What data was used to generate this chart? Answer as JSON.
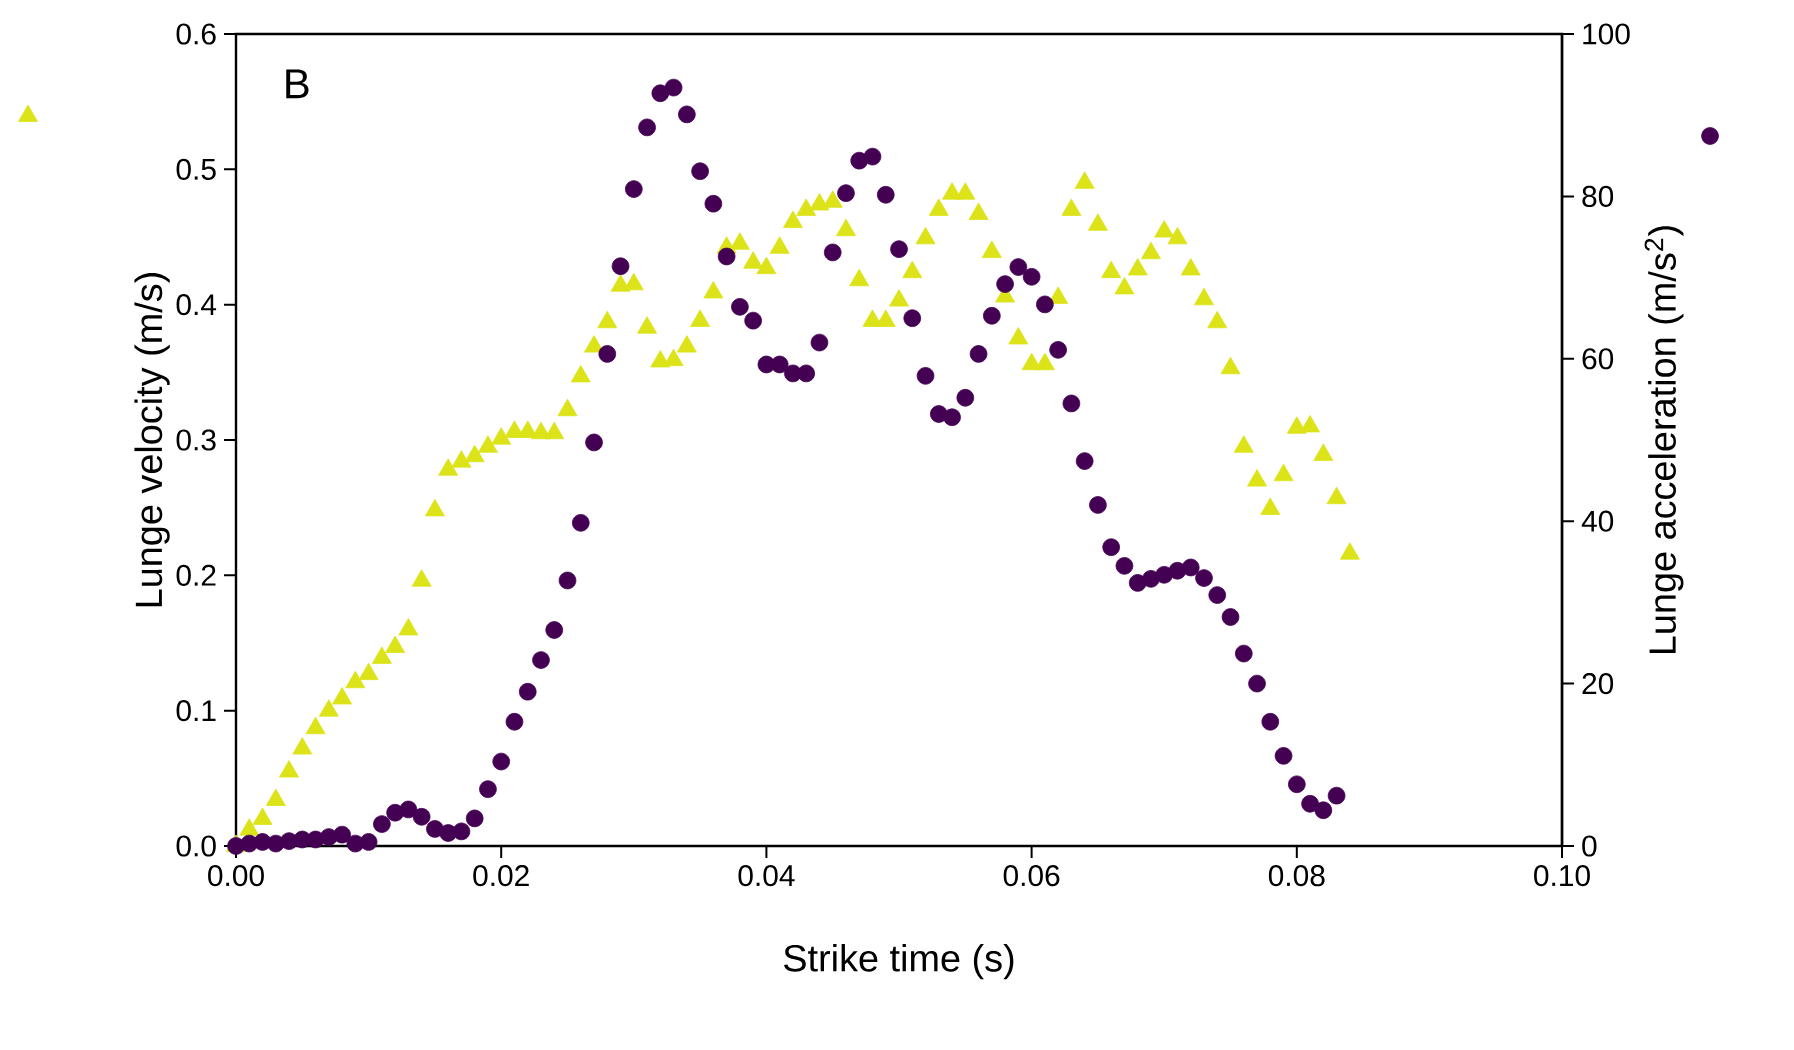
{
  "chart_data": {
    "type": "scatter",
    "xlabel": "Strike time (s)",
    "ylabel": "Lunge velocity (m/s)",
    "y2label": "Lunge acceleration (m/s$^{2}$)",
    "annotations": [
      "B"
    ],
    "xlim": [
      0,
      0.1
    ],
    "xticks": [
      {
        "value": 0,
        "label": "0.00"
      },
      {
        "value": 0.02,
        "label": "0.02"
      },
      {
        "value": 0.04,
        "label": "0.04"
      },
      {
        "value": 0.06,
        "label": "0.06"
      },
      {
        "value": 0.08,
        "label": "0.08"
      },
      {
        "value": 0.1,
        "label": "0.10"
      }
    ],
    "ylim": [
      0,
      0.6
    ],
    "yticks": [
      {
        "value": 0,
        "label": "0.0"
      },
      {
        "value": 0.1,
        "label": "0.1"
      },
      {
        "value": 0.2,
        "label": "0.2"
      },
      {
        "value": 0.3,
        "label": "0.3"
      },
      {
        "value": 0.4,
        "label": "0.4"
      },
      {
        "value": 0.5,
        "label": "0.5"
      },
      {
        "value": 0.6,
        "label": "0.6"
      }
    ],
    "y2lim": [
      0,
      100
    ],
    "y2ticks": [
      0,
      20,
      40,
      60,
      80,
      100
    ],
    "series": [
      {
        "color": "#dce319",
        "marker": "triangle",
        "x": [
          0,
          0.001,
          0.002,
          0.003,
          0.004,
          0.005,
          0.006,
          0.007,
          0.008,
          0.009,
          0.01,
          0.011,
          0.012,
          0.013,
          0.014,
          0.015,
          0.016,
          0.017,
          0.018,
          0.019,
          0.02,
          0.021,
          0.022,
          0.023,
          0.024,
          0.025,
          0.026,
          0.027,
          0.028,
          0.029,
          0.03,
          0.031,
          0.032,
          0.033,
          0.034,
          0.035,
          0.036,
          0.037,
          0.038,
          0.039,
          0.04,
          0.041,
          0.042,
          0.043,
          0.044,
          0.045,
          0.046,
          0.047,
          0.048,
          0.049,
          0.05,
          0.051,
          0.052,
          0.053,
          0.054,
          0.055,
          0.056,
          0.057,
          0.058,
          0.059,
          0.06,
          0.061,
          0.062,
          0.063,
          0.064,
          0.065,
          0.066,
          0.067,
          0.068,
          0.069,
          0.07,
          0.071,
          0.072,
          0.073,
          0.074,
          0.075,
          0.076,
          0.077,
          0.078,
          0.079,
          0.08,
          0.081,
          0.082,
          0.083,
          0.084
        ],
        "values": [
          0,
          0.012,
          0.02,
          0.034,
          0.055,
          0.072,
          0.087,
          0.1,
          0.109,
          0.121,
          0.127,
          0.139,
          0.147,
          0.16,
          0.196,
          0.248,
          0.278,
          0.284,
          0.288,
          0.295,
          0.301,
          0.306,
          0.306,
          0.305,
          0.305,
          0.322,
          0.347,
          0.369,
          0.387,
          0.414,
          0.415,
          0.383,
          0.358,
          0.359,
          0.369,
          0.388,
          0.409,
          0.442,
          0.445,
          0.431,
          0.427,
          0.442,
          0.461,
          0.47,
          0.474,
          0.476,
          0.455,
          0.418,
          0.388,
          0.388,
          0.403,
          0.424,
          0.449,
          0.47,
          0.482,
          0.482,
          0.467,
          0.439,
          0.406,
          0.375,
          0.356,
          0.356,
          0.405,
          0.47,
          0.49,
          0.459,
          0.424,
          0.412,
          0.426,
          0.438,
          0.454,
          0.449,
          0.426,
          0.404,
          0.387,
          0.353,
          0.295,
          0.27,
          0.249,
          0.274,
          0.309,
          0.31,
          0.289,
          0.257,
          0.216
        ]
      },
      {
        "color": "#440154",
        "marker": "circle",
        "axis": "y2",
        "x": [
          0,
          0.001,
          0.002,
          0.003,
          0.004,
          0.005,
          0.006,
          0.007,
          0.008,
          0.009,
          0.01,
          0.011,
          0.012,
          0.013,
          0.014,
          0.015,
          0.016,
          0.017,
          0.018,
          0.019,
          0.02,
          0.021,
          0.022,
          0.023,
          0.024,
          0.025,
          0.026,
          0.027,
          0.028,
          0.029,
          0.03,
          0.031,
          0.032,
          0.033,
          0.034,
          0.035,
          0.036,
          0.037,
          0.038,
          0.039,
          0.04,
          0.041,
          0.042,
          0.043,
          0.044,
          0.045,
          0.046,
          0.047,
          0.048,
          0.049,
          0.05,
          0.051,
          0.052,
          0.053,
          0.054,
          0.055,
          0.056,
          0.057,
          0.058,
          0.059,
          0.06,
          0.061,
          0.062,
          0.063,
          0.064,
          0.065,
          0.066,
          0.067,
          0.068,
          0.069,
          0.07,
          0.071,
          0.072,
          0.073,
          0.074,
          0.075,
          0.076,
          0.077,
          0.078,
          0.079,
          0.08,
          0.081,
          0.082,
          0.083
        ],
        "values": [
          0,
          0.3,
          0.5,
          0.3,
          0.6,
          0.8,
          0.8,
          1.1,
          1.4,
          0.3,
          0.5,
          2.7,
          4.1,
          4.5,
          3.6,
          2.1,
          1.6,
          1.8,
          3.4,
          7,
          10.4,
          15.3,
          19,
          22.9,
          26.6,
          32.7,
          39.8,
          49.7,
          60.6,
          71.4,
          80.9,
          88.5,
          92.7,
          93.4,
          90.1,
          83.1,
          79.1,
          72.6,
          66.4,
          64.7,
          59.3,
          59.3,
          58.2,
          58.2,
          62,
          73.1,
          80.4,
          84.4,
          84.9,
          80.2,
          73.5,
          65,
          57.9,
          53.2,
          52.8,
          55.2,
          60.6,
          65.3,
          69.2,
          71.3,
          70.1,
          66.7,
          61.1,
          54.5,
          47.4,
          42,
          36.8,
          34.5,
          32.4,
          32.9,
          33.4,
          33.9,
          34.3,
          33,
          30.9,
          28.2,
          23.7,
          20,
          15.3,
          11.1,
          7.6,
          5.2,
          4.4,
          6.2
        ]
      }
    ]
  }
}
